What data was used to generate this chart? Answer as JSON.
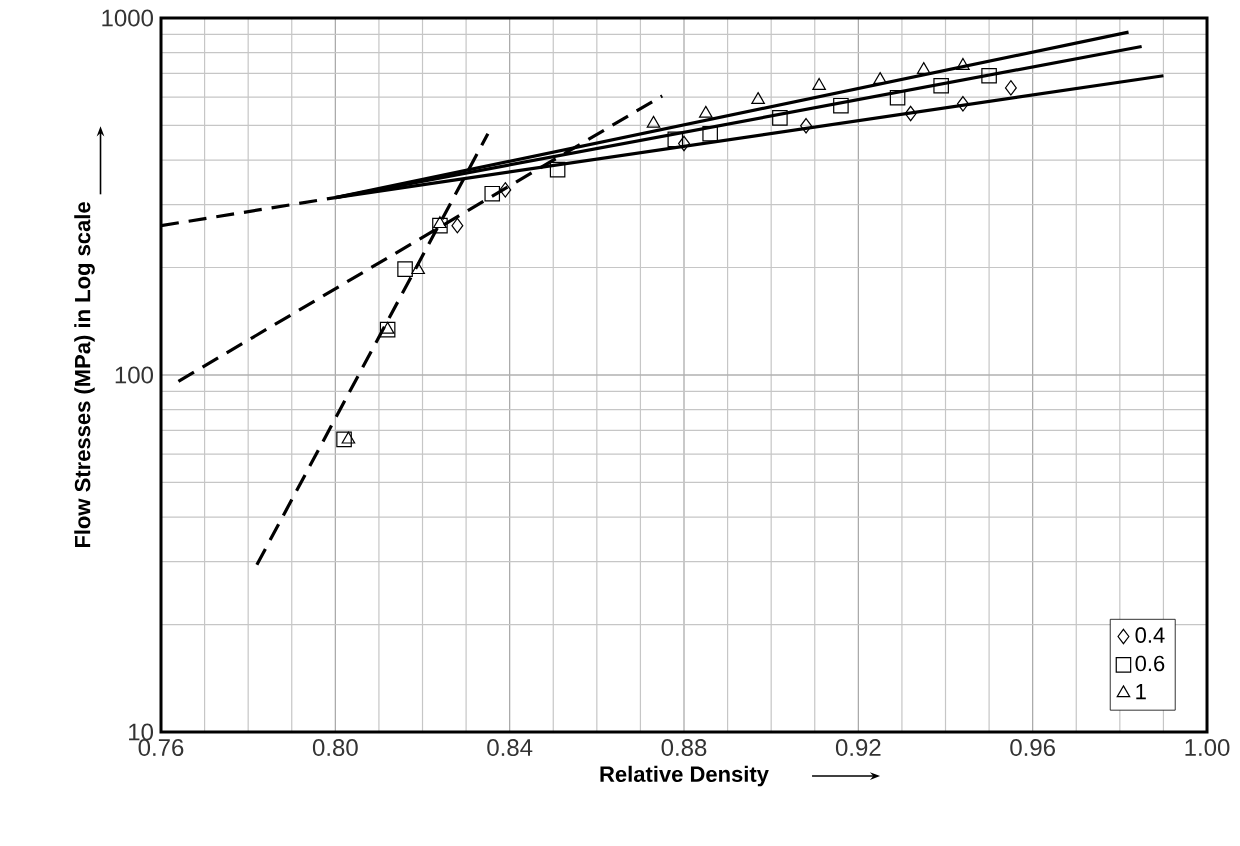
{
  "chart_data": {
    "type": "scatter",
    "xlabel": "Relative Density",
    "ylabel": "Flow  Stresses (MPa) in Log scale",
    "log": "y",
    "grid": true,
    "legend": "bottom right",
    "xlim": [
      0.76,
      1.0
    ],
    "ylim": [
      10,
      1000
    ],
    "xticks": [
      {
        "value": 0.76,
        "label": "0.76"
      },
      {
        "value": 0.8,
        "label": "0.80"
      },
      {
        "value": 0.84,
        "label": "0.84"
      },
      {
        "value": 0.88,
        "label": "0.88"
      },
      {
        "value": 0.92,
        "label": "0.92"
      },
      {
        "value": 0.96,
        "label": "0.96"
      },
      {
        "value": 1.0,
        "label": "1.00"
      }
    ],
    "yticks": [
      10,
      100,
      1000
    ],
    "series": [
      {
        "name": "0.4",
        "marker": "diamond",
        "color": "#000000",
        "x": [
          0.828,
          0.839,
          0.88,
          0.908,
          0.932,
          0.944,
          0.955
        ],
        "values": [
          262,
          330,
          445,
          499,
          540,
          575,
          637
        ]
      },
      {
        "name": "0.6",
        "marker": "square",
        "color": "#000000",
        "x": [
          0.802,
          0.812,
          0.816,
          0.824,
          0.836,
          0.851,
          0.878,
          0.886,
          0.902,
          0.916,
          0.929,
          0.939,
          0.95
        ],
        "values": [
          66,
          134,
          198,
          262,
          322,
          376,
          457,
          474,
          525,
          568,
          598,
          646,
          689
        ]
      },
      {
        "name": "1",
        "marker": "triangle",
        "color": "#000000",
        "x": [
          0.803,
          0.812,
          0.819,
          0.824,
          0.873,
          0.885,
          0.897,
          0.911,
          0.925,
          0.935,
          0.944
        ],
        "values": [
          66,
          134,
          197,
          265,
          506,
          540,
          590,
          646,
          671,
          716,
          735
        ]
      },
      {
        "type": "line",
        "line_style": "solid",
        "color": "#000000",
        "x": [
          0.8,
          0.982
        ],
        "values": [
          314,
          913
        ]
      },
      {
        "type": "line",
        "line_style": "solid",
        "color": "#000000",
        "x": [
          0.8,
          0.985
        ],
        "values": [
          314,
          832
        ]
      },
      {
        "type": "line",
        "line_style": "solid",
        "color": "#000000",
        "x": [
          0.8,
          0.99
        ],
        "values": [
          314,
          689
        ]
      },
      {
        "type": "line",
        "line_style": "dashed",
        "color": "#000000",
        "x": [
          0.76,
          0.8
        ],
        "values": [
          262,
          314
        ]
      },
      {
        "type": "line",
        "line_style": "dashed",
        "color": "#000000",
        "x": [
          0.764,
          0.875
        ],
        "values": [
          96,
          605
        ]
      },
      {
        "type": "line",
        "line_style": "dashed",
        "color": "#000000",
        "x": [
          0.782,
          0.835
        ],
        "values": [
          29.4,
          474
        ]
      }
    ]
  }
}
